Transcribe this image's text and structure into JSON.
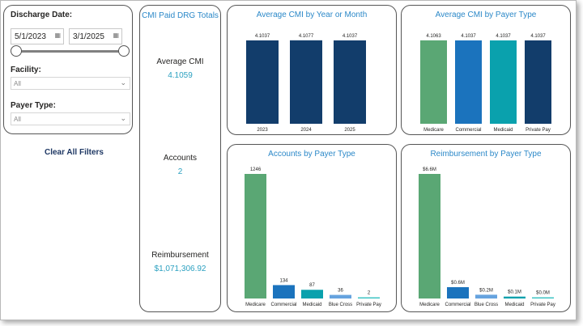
{
  "filters": {
    "discharge_date_label": "Discharge Date:",
    "start_date": "5/1/2023",
    "end_date": "3/1/2025",
    "facility_label": "Facility:",
    "facility_value": "All",
    "payer_type_label": "Payer Type:",
    "payer_type_value": "All",
    "clear_label": "Clear All Filters"
  },
  "kpis": {
    "title": "CMI Paid DRG Totals",
    "avg_cmi_label": "Average CMI",
    "avg_cmi_value": "4.1059",
    "accounts_label": "Accounts",
    "accounts_value": "2",
    "reimbursement_label": "Reimbursement",
    "reimbursement_value": "$1,071,306.92"
  },
  "colors": {
    "navy": "#123d6b",
    "green": "#5aa774",
    "blue": "#1b73bd",
    "teal": "#0aa1ad",
    "lightblue": "#66a3df",
    "lightteal": "#3ec4c4"
  },
  "chart_data": [
    {
      "type": "bar",
      "title": "Average CMI by Year or Month",
      "categories": [
        "2023",
        "2024",
        "2025"
      ],
      "values": [
        4.1037,
        4.1077,
        4.1037
      ],
      "labels": [
        "4.1037",
        "4.1077",
        "4.1037"
      ],
      "colors": [
        "#123d6b",
        "#123d6b",
        "#123d6b"
      ],
      "ylim": [
        0,
        4.3
      ]
    },
    {
      "type": "bar",
      "title": "Average CMI by Payer Type",
      "categories": [
        "Medicare",
        "Commercial",
        "Medicaid",
        "Private Pay"
      ],
      "values": [
        4.1063,
        4.1037,
        4.1037,
        4.1037
      ],
      "labels": [
        "4.1063",
        "4.1037",
        "4.1037",
        "4.1037"
      ],
      "colors": [
        "#5aa774",
        "#1b73bd",
        "#0aa1ad",
        "#123d6b"
      ],
      "ylim": [
        0,
        4.3
      ]
    },
    {
      "type": "bar",
      "title": "Accounts by Payer Type",
      "categories": [
        "Medicare",
        "Commercial",
        "Medicaid",
        "Blue Cross",
        "Private Pay"
      ],
      "values": [
        1246,
        134,
        87,
        36,
        2
      ],
      "labels": [
        "1246",
        "134",
        "87",
        "36",
        "2"
      ],
      "colors": [
        "#5aa774",
        "#1b73bd",
        "#0aa1ad",
        "#66a3df",
        "#3ec4c4"
      ],
      "ylim": [
        0,
        1246
      ]
    },
    {
      "type": "bar",
      "title": "Reimbursement by Payer Type",
      "categories": [
        "Medicare",
        "Commercial",
        "Blue Cross",
        "Medicaid",
        "Private Pay"
      ],
      "values": [
        6.6,
        0.6,
        0.2,
        0.1,
        0.0
      ],
      "labels": [
        "$6.6M",
        "$0.6M",
        "$0.2M",
        "$0.1M",
        "$0.0M"
      ],
      "colors": [
        "#5aa774",
        "#1b73bd",
        "#66a3df",
        "#0aa1ad",
        "#3ec4c4"
      ],
      "ylim": [
        0,
        6.6
      ]
    }
  ]
}
